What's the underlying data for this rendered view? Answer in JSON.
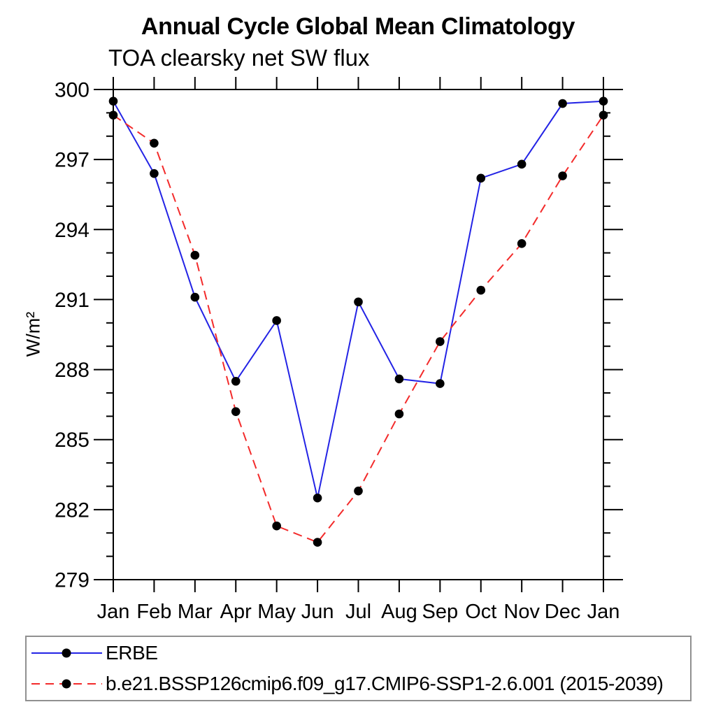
{
  "chart_data": {
    "type": "line",
    "title": "Annual Cycle Global Mean Climatology",
    "subtitle": "TOA clearsky net SW flux",
    "ylabel": "W/m²",
    "xlabel": "",
    "categories": [
      "Jan",
      "Feb",
      "Mar",
      "Apr",
      "May",
      "Jun",
      "Jul",
      "Aug",
      "Sep",
      "Oct",
      "Nov",
      "Dec",
      "Jan"
    ],
    "series": [
      {
        "name": "ERBE",
        "color": "#2323e5",
        "line_style": "solid",
        "values": [
          299.5,
          296.4,
          291.1,
          287.5,
          290.1,
          282.5,
          290.9,
          287.6,
          287.4,
          296.2,
          296.8,
          299.4,
          299.5
        ]
      },
      {
        "name": "b.e21.BSSP126cmip6.f09_g17.CMIP6-SSP1-2.6.001 (2015-2039)",
        "color": "#f32b2b",
        "line_style": "dashed",
        "values": [
          298.9,
          297.7,
          292.9,
          286.2,
          281.3,
          280.6,
          282.8,
          286.1,
          289.2,
          291.4,
          293.4,
          296.3,
          298.9
        ]
      }
    ],
    "marker": {
      "shape": "circle",
      "color": "#000000"
    },
    "ylim": [
      279,
      300
    ],
    "yticks": [
      279,
      282,
      285,
      288,
      291,
      294,
      297,
      300
    ],
    "y_minor_step": 1,
    "grid": false,
    "legend_position": "bottom"
  }
}
